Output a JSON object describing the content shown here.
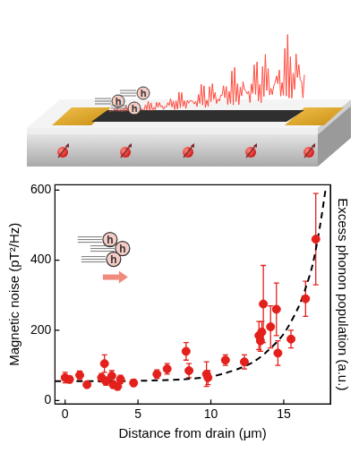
{
  "chart_data": {
    "type": "scatter",
    "x_label": "Distance from drain (μm)",
    "y_label": "Magnetic noise (pT²/Hz)",
    "y2_label": "Excess phonon population (a.u.)",
    "annotations": [
      "h"
    ],
    "xlim": [
      -0.7,
      18.2
    ],
    "xticks": [
      0,
      5,
      10,
      15
    ],
    "ylim": [
      -10,
      615
    ],
    "yticks": [
      0,
      200,
      400,
      600
    ],
    "grid": false,
    "series": [
      {
        "type": "scatter",
        "color": "#e3201b",
        "marker": "circle",
        "x": [
          0,
          0.3,
          1,
          1.5,
          2.5,
          2.7,
          2.8,
          3.2,
          3.3,
          3.6,
          3.8,
          4.7,
          6.3,
          7,
          8.3,
          8.5,
          9.7,
          9.8,
          11,
          12.3,
          13.3,
          13.4,
          13.5,
          13.6,
          14.1,
          14.5,
          14.6,
          15.5,
          16.5,
          17.2
        ],
        "values": [
          65,
          60,
          72,
          45,
          65,
          105,
          55,
          70,
          45,
          40,
          60,
          50,
          75,
          90,
          140,
          85,
          75,
          65,
          115,
          110,
          185,
          170,
          195,
          275,
          210,
          260,
          135,
          175,
          290,
          460
        ],
        "error": [
          15,
          10,
          12,
          8,
          12,
          25,
          12,
          15,
          10,
          10,
          12,
          10,
          12,
          15,
          25,
          20,
          35,
          20,
          15,
          20,
          40,
          30,
          30,
          110,
          60,
          75,
          35,
          25,
          50,
          130
        ]
      },
      {
        "type": "line",
        "color": "#000000",
        "line_style": "dashed",
        "x": [
          -0.7,
          2,
          4,
          6,
          8,
          10,
          11,
          12,
          13,
          14,
          15,
          16,
          16.5,
          17,
          17.5,
          17.9
        ],
        "values": [
          55,
          55,
          55,
          57,
          60,
          68,
          78,
          92,
          112,
          145,
          190,
          265,
          320,
          390,
          500,
          610
        ]
      }
    ]
  }
}
